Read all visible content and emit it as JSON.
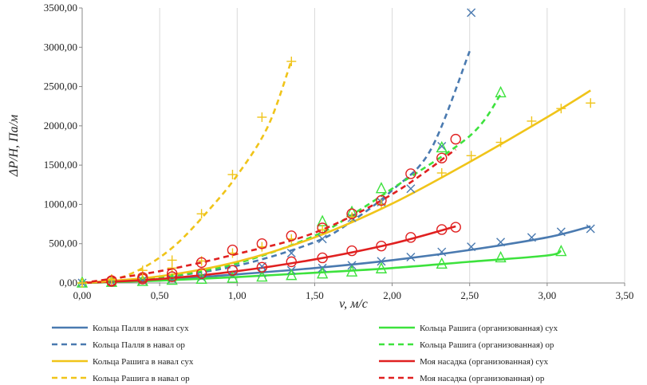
{
  "chart_data": {
    "type": "scatter",
    "xlabel": "v, м/с",
    "ylabel": "ΔP/H, Па/м",
    "xlim": [
      0,
      3.5
    ],
    "ylim": [
      0,
      3500
    ],
    "x_ticks": [
      "0,00",
      "0,50",
      "1,00",
      "1,50",
      "2,00",
      "2,50",
      "3,00",
      "3,50"
    ],
    "y_ticks": [
      "0,00",
      "500,00",
      "1000,00",
      "1500,00",
      "2000,00",
      "2500,00",
      "3000,00",
      "3500,00"
    ],
    "grid": "vertical",
    "legend_position": "bottom",
    "series": [
      {
        "name": "Кольца Палля в навал  сух",
        "color": "#4a7ab0",
        "dash": false,
        "marker": "x",
        "x": [
          0.0,
          0.19,
          0.39,
          0.58,
          0.77,
          0.97,
          1.16,
          1.35,
          1.55,
          1.74,
          1.93,
          2.12,
          2.32,
          2.51,
          2.7,
          2.9,
          3.09,
          3.28
        ],
        "y": [
          0,
          12,
          30,
          48,
          70,
          97,
          128,
          160,
          190,
          225,
          275,
          330,
          395,
          460,
          520,
          580,
          650,
          690
        ],
        "fit": [
          [
            0.0,
            0
          ],
          [
            0.5,
            40
          ],
          [
            1.0,
            110
          ],
          [
            1.5,
            190
          ],
          [
            2.0,
            290
          ],
          [
            2.5,
            420
          ],
          [
            3.0,
            580
          ],
          [
            3.28,
            720
          ]
        ]
      },
      {
        "name": "Кольца Рашига (организованная) сух",
        "color": "#3de23d",
        "dash": false,
        "marker": "triangle",
        "x": [
          0.0,
          0.19,
          0.39,
          0.58,
          0.77,
          0.97,
          1.16,
          1.35,
          1.55,
          1.74,
          1.93,
          2.32,
          2.7,
          3.09
        ],
        "y": [
          0,
          8,
          20,
          35,
          48,
          60,
          75,
          95,
          115,
          140,
          180,
          240,
          320,
          400
        ],
        "fit": [
          [
            0.0,
            0
          ],
          [
            0.5,
            30
          ],
          [
            1.0,
            75
          ],
          [
            1.5,
            130
          ],
          [
            2.0,
            190
          ],
          [
            2.5,
            270
          ],
          [
            3.0,
            350
          ],
          [
            3.09,
            410
          ]
        ]
      },
      {
        "name": "Кольца Палля в навал ор",
        "color": "#4a7ab0",
        "dash": true,
        "marker": "x",
        "x": [
          1.16,
          1.35,
          1.55,
          1.74,
          1.93,
          2.12,
          2.32,
          2.51
        ],
        "y": [
          210,
          380,
          560,
          830,
          1030,
          1200,
          1740,
          3440
        ],
        "fit": [
          [
            0.0,
            0
          ],
          [
            0.5,
            70
          ],
          [
            1.0,
            220
          ],
          [
            1.5,
            520
          ],
          [
            1.75,
            800
          ],
          [
            2.0,
            1180
          ],
          [
            2.25,
            1700
          ],
          [
            2.5,
            2950
          ]
        ]
      },
      {
        "name": "Кольца Рашига (организованная) ор",
        "color": "#3de23d",
        "dash": true,
        "marker": "triangle",
        "x": [
          1.55,
          1.74,
          1.93,
          2.32,
          2.7
        ],
        "y": [
          780,
          900,
          1200,
          1720,
          2420
        ],
        "fit": [
          [
            0.0,
            0
          ],
          [
            0.5,
            70
          ],
          [
            1.0,
            250
          ],
          [
            1.5,
            600
          ],
          [
            1.75,
            880
          ],
          [
            2.0,
            1200
          ],
          [
            2.5,
            1870
          ],
          [
            2.7,
            2400
          ]
        ]
      },
      {
        "name": "Кольца Рашига в навал сух",
        "color": "#f0c419",
        "dash": false,
        "marker": "plus",
        "x": [
          0.0,
          0.19,
          0.39,
          0.58,
          0.77,
          0.97,
          1.16,
          1.35,
          1.55,
          1.74,
          1.93,
          2.32,
          2.51,
          2.7,
          2.9,
          3.09,
          3.28
        ],
        "y": [
          0,
          40,
          110,
          190,
          280,
          380,
          460,
          560,
          680,
          840,
          1000,
          1400,
          1620,
          1790,
          2060,
          2220,
          2290
        ],
        "fit": [
          [
            0.0,
            0
          ],
          [
            0.5,
            85
          ],
          [
            1.0,
            270
          ],
          [
            1.5,
            580
          ],
          [
            2.0,
            1010
          ],
          [
            2.5,
            1540
          ],
          [
            3.0,
            2110
          ],
          [
            3.28,
            2450
          ]
        ]
      },
      {
        "name": "Моя насадка (организованная) сух",
        "color": "#e02020",
        "dash": false,
        "marker": "circle",
        "x": [
          0.19,
          0.39,
          0.58,
          0.77,
          0.97,
          1.16,
          1.35,
          1.55,
          1.74,
          1.93,
          2.12,
          2.32,
          2.41
        ],
        "y": [
          20,
          50,
          80,
          120,
          160,
          200,
          270,
          320,
          410,
          470,
          580,
          680,
          710
        ],
        "fit": [
          [
            0.0,
            0
          ],
          [
            0.5,
            50
          ],
          [
            1.0,
            150
          ],
          [
            1.5,
            300
          ],
          [
            2.0,
            500
          ],
          [
            2.41,
            720
          ]
        ]
      },
      {
        "name": "Кольца Рашига в навал ор",
        "color": "#f0c419",
        "dash": true,
        "marker": "plus",
        "x": [
          0.0,
          0.19,
          0.39,
          0.58,
          0.77,
          0.97,
          1.16,
          1.35
        ],
        "y": [
          0,
          50,
          160,
          290,
          880,
          1380,
          2110,
          2820
        ],
        "fit": [
          [
            0.0,
            0
          ],
          [
            0.2,
            40
          ],
          [
            0.4,
            200
          ],
          [
            0.6,
            480
          ],
          [
            0.8,
            890
          ],
          [
            1.0,
            1370
          ],
          [
            1.2,
            2000
          ],
          [
            1.35,
            2830
          ]
        ]
      },
      {
        "name": "Моя насадка (организованная) ор",
        "color": "#e02020",
        "dash": true,
        "marker": "circle",
        "x": [
          0.19,
          0.39,
          0.58,
          0.77,
          0.97,
          1.16,
          1.35,
          1.55,
          1.74,
          1.93,
          2.12,
          2.32,
          2.41
        ],
        "y": [
          30,
          70,
          120,
          260,
          420,
          500,
          600,
          700,
          880,
          1050,
          1390,
          1590,
          1830
        ],
        "fit": [
          [
            0.0,
            0
          ],
          [
            0.5,
            150
          ],
          [
            1.0,
            370
          ],
          [
            1.5,
            640
          ],
          [
            2.0,
            1130
          ],
          [
            2.41,
            1700
          ]
        ]
      }
    ]
  }
}
